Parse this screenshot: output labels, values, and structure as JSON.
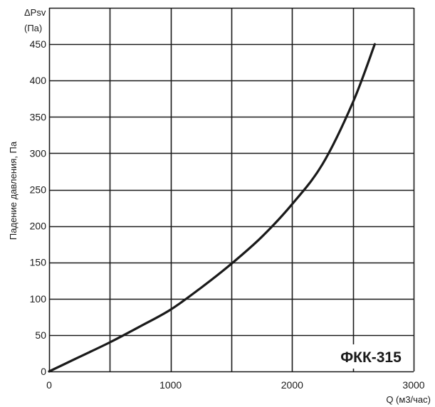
{
  "chart_data": {
    "type": "line",
    "title": "",
    "model_label": "ФКК-315",
    "ylabel": "Падение давления, Па",
    "y_unit_line1": "ΔPsv",
    "y_unit_line2": "(Па)",
    "xlabel": "Q (м3/час)",
    "xlim": [
      0,
      3000
    ],
    "ylim": [
      0,
      500
    ],
    "x_ticks": [
      0,
      1000,
      2000,
      3000
    ],
    "x_tick_labels": [
      "0",
      "1000",
      "2000",
      "3000"
    ],
    "y_ticks": [
      0,
      50,
      100,
      150,
      200,
      250,
      300,
      350,
      400,
      450
    ],
    "y_tick_labels": [
      "0",
      "50",
      "100",
      "150",
      "200",
      "250",
      "300",
      "350",
      "400",
      "450"
    ],
    "grid": true,
    "grid_x_step": 500,
    "grid_y_step": 50,
    "line_color": "#1a1a1a",
    "series": [
      {
        "x": [
          0,
          250,
          500,
          750,
          1000,
          1250,
          1500,
          1750,
          2000,
          2250,
          2500,
          2680
        ],
        "y": [
          0,
          20,
          40,
          62,
          85,
          115,
          148,
          185,
          230,
          285,
          370,
          450
        ]
      }
    ]
  }
}
